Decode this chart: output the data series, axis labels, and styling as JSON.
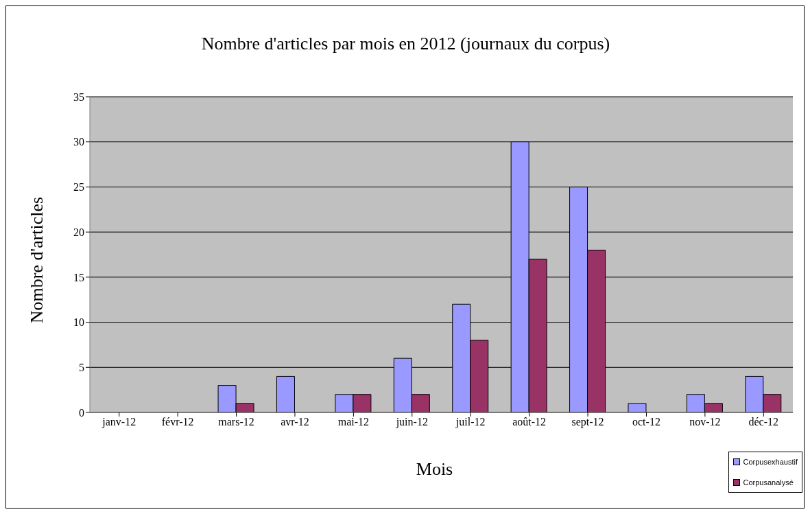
{
  "chart_data": {
    "type": "bar",
    "title": "Nombre d'articles par mois en 2012 (journaux du corpus)",
    "xlabel": "Mois",
    "ylabel": "Nombre d'articles",
    "categories": [
      "janv-12",
      "févr-12",
      "mars-12",
      "avr-12",
      "mai-12",
      "juin-12",
      "juil-12",
      "août-12",
      "sept-12",
      "oct-12",
      "nov-12",
      "déc-12"
    ],
    "series": [
      {
        "name": "Corpusexhaustif",
        "color": "#9999ff",
        "values": [
          0,
          0,
          3,
          4,
          2,
          6,
          12,
          30,
          25,
          1,
          2,
          4
        ]
      },
      {
        "name": "Corpusanalysé",
        "color": "#993366",
        "values": [
          0,
          0,
          1,
          0,
          2,
          2,
          8,
          17,
          18,
          0,
          1,
          2
        ]
      }
    ],
    "ylim": [
      0,
      35
    ],
    "yticks": [
      0,
      5,
      10,
      15,
      20,
      25,
      30,
      35
    ],
    "grid": "y",
    "legend": "bottom right"
  }
}
